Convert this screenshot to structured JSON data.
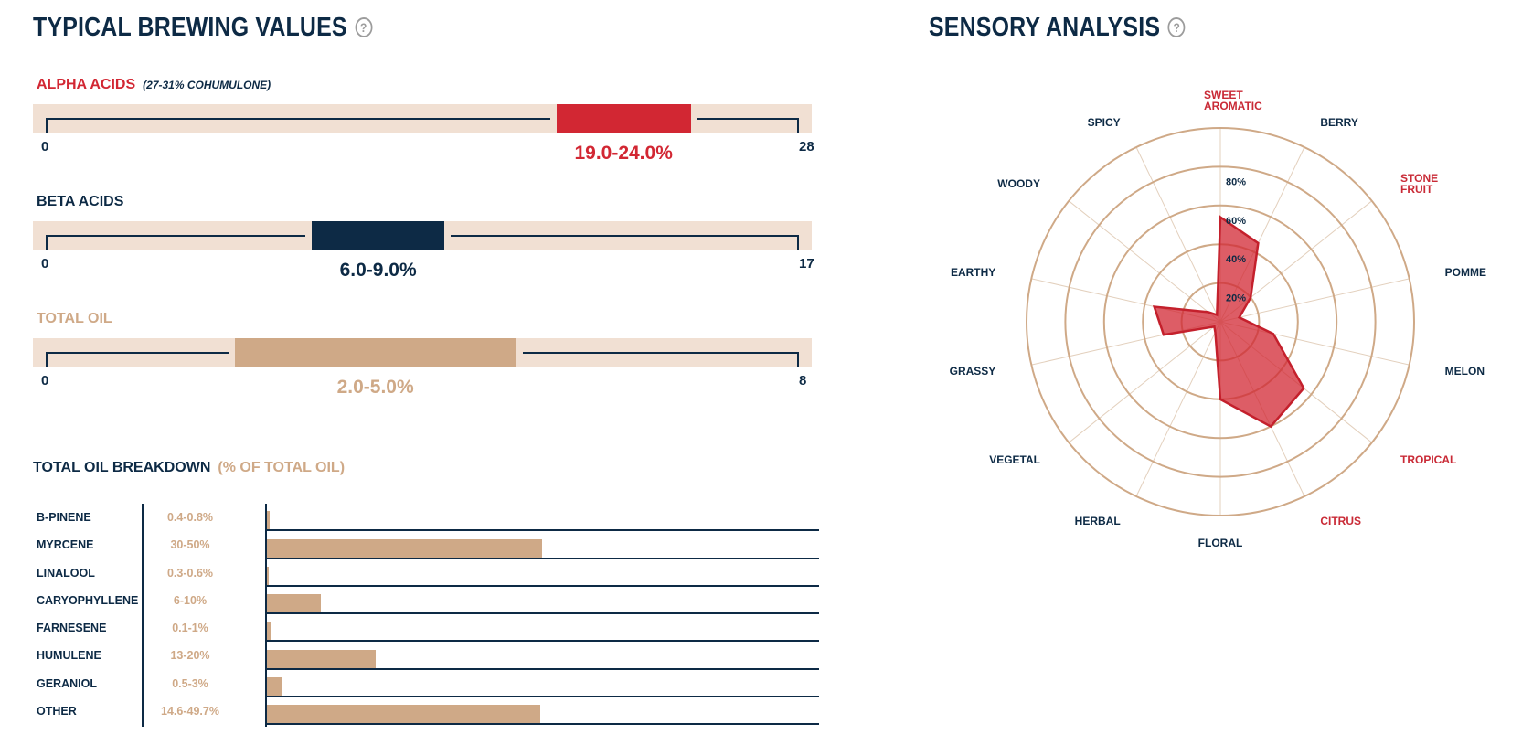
{
  "brewing": {
    "title": "TYPICAL BREWING VALUES",
    "help_icon": "?",
    "ranges": [
      {
        "label": "ALPHA ACIDS",
        "sublabel": "(27-31% COHUMULONE)",
        "min_label": "0",
        "max_label": "28",
        "min": 0,
        "max": 28,
        "low": 19.0,
        "high": 24.0,
        "value_label": "19.0-24.0%",
        "color": "#d22733"
      },
      {
        "label": "BETA ACIDS",
        "sublabel": "",
        "min_label": "0",
        "max_label": "17",
        "min": 0,
        "max": 17,
        "low": 6.0,
        "high": 9.0,
        "value_label": "6.0-9.0%",
        "color": "#0d2a45"
      },
      {
        "label": "TOTAL OIL",
        "sublabel": "",
        "min_label": "0",
        "max_label": "8",
        "min": 0,
        "max": 8,
        "low": 2.0,
        "high": 5.0,
        "value_label": "2.0-5.0%",
        "color": "#cfa987"
      }
    ]
  },
  "oil_breakdown": {
    "title": "TOTAL OIL BREAKDOWN",
    "subtitle": "(% OF TOTAL OIL)",
    "rows": [
      {
        "name": "B-PINENE",
        "range": "0.4-0.8%",
        "value": 0.8
      },
      {
        "name": "MYRCENE",
        "range": "30-50%",
        "value": 50
      },
      {
        "name": "LINALOOL",
        "range": "0.3-0.6%",
        "value": 0.6
      },
      {
        "name": "CARYOPHYLLENE",
        "range": "6-10%",
        "value": 10
      },
      {
        "name": "FARNESENE",
        "range": "0.1-1%",
        "value": 1
      },
      {
        "name": "HUMULENE",
        "range": "13-20%",
        "value": 20
      },
      {
        "name": "GERANIOL",
        "range": "0.5-3%",
        "value": 3
      },
      {
        "name": "OTHER",
        "range": "14.6-49.7%",
        "value": 49.7
      }
    ]
  },
  "sensory": {
    "title": "SENSORY ANALYSIS",
    "help_icon": "?",
    "ring_labels": [
      "20%",
      "40%",
      "60%",
      "80%"
    ],
    "highlight_color": "#c92a36",
    "normal_color": "#0d2a45"
  },
  "chart_data": {
    "type": "radar",
    "axes": [
      "SWEET AROMATIC",
      "BERRY",
      "STONE FRUIT",
      "POMME",
      "MELON",
      "TROPICAL",
      "CITRUS",
      "FLORAL",
      "HERBAL",
      "VEGETAL",
      "GRASSY",
      "EARTHY",
      "WOODY",
      "SPICY"
    ],
    "highlighted": [
      true,
      false,
      true,
      false,
      false,
      true,
      true,
      false,
      false,
      false,
      false,
      false,
      false,
      false
    ],
    "values": [
      54,
      45,
      20,
      10,
      28,
      55,
      60,
      40,
      6,
      4,
      30,
      35,
      8,
      4
    ],
    "rlim": [
      0,
      100
    ],
    "ticks": [
      20,
      40,
      60,
      80
    ],
    "grid": true,
    "fill_color": "#d22733"
  }
}
